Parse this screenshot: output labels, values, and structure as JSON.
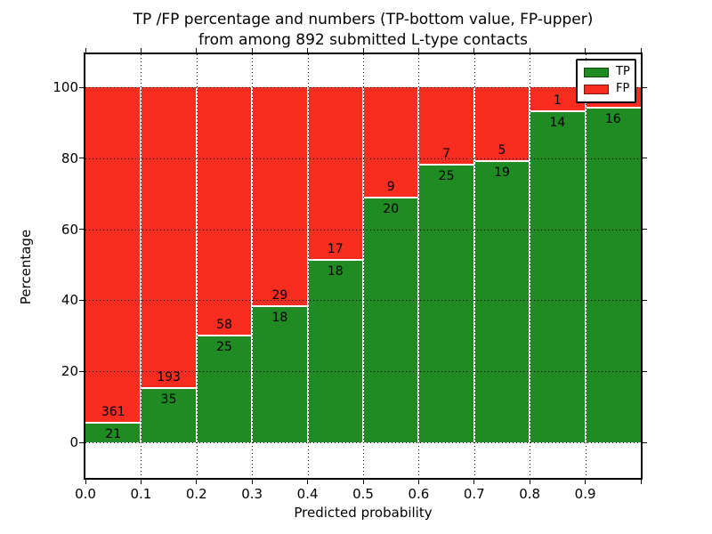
{
  "title": {
    "line1": "TP /FP percentage and numbers (TP-bottom value, FP-upper)",
    "line2": "from among 892 submitted L-type contacts"
  },
  "axes": {
    "xlabel": "Predicted probability",
    "ylabel": "Percentage",
    "x_tick_labels": [
      "0.0",
      "0.1",
      "0.2",
      "0.3",
      "0.4",
      "0.5",
      "0.6",
      "0.7",
      "0.8",
      "0.9"
    ],
    "y_tick_labels": [
      "0",
      "20",
      "40",
      "60",
      "80",
      "100"
    ]
  },
  "legend": {
    "items": [
      {
        "label": "TP",
        "color": "#1f8b22"
      },
      {
        "label": "FP",
        "color": "#f92c20"
      }
    ]
  },
  "chart_data": {
    "type": "bar",
    "variant": "stacked-100-percent",
    "title": "TP /FP percentage and numbers (TP-bottom value, FP-upper) from among 892 submitted L-type contacts",
    "xlabel": "Predicted probability",
    "ylabel": "Percentage",
    "x_bins": [
      "0.0-0.1",
      "0.1-0.2",
      "0.2-0.3",
      "0.3-0.4",
      "0.4-0.5",
      "0.5-0.6",
      "0.6-0.7",
      "0.7-0.8",
      "0.8-0.9",
      "0.9-1.0"
    ],
    "x_ticks": [
      0.0,
      0.1,
      0.2,
      0.3,
      0.4,
      0.5,
      0.6,
      0.7,
      0.8,
      0.9
    ],
    "y_ticks": [
      0,
      20,
      40,
      60,
      80,
      100
    ],
    "xlim": [
      0.0,
      1.0
    ],
    "ylim": [
      -10,
      110
    ],
    "grid": "dotted",
    "legend_position": "upper-right",
    "total_contacts": 892,
    "series": [
      {
        "name": "TP",
        "position": "bottom",
        "color": "#1f8b22",
        "counts": [
          21,
          35,
          25,
          18,
          18,
          20,
          25,
          19,
          14,
          16
        ]
      },
      {
        "name": "FP",
        "position": "top",
        "color": "#f92c20",
        "counts": [
          361,
          193,
          58,
          29,
          17,
          9,
          7,
          5,
          1,
          1
        ]
      }
    ],
    "tp_percent_of_bin": [
      5.5,
      15.4,
      30.1,
      38.3,
      51.4,
      69.0,
      78.1,
      79.2,
      93.3,
      94.1
    ]
  }
}
